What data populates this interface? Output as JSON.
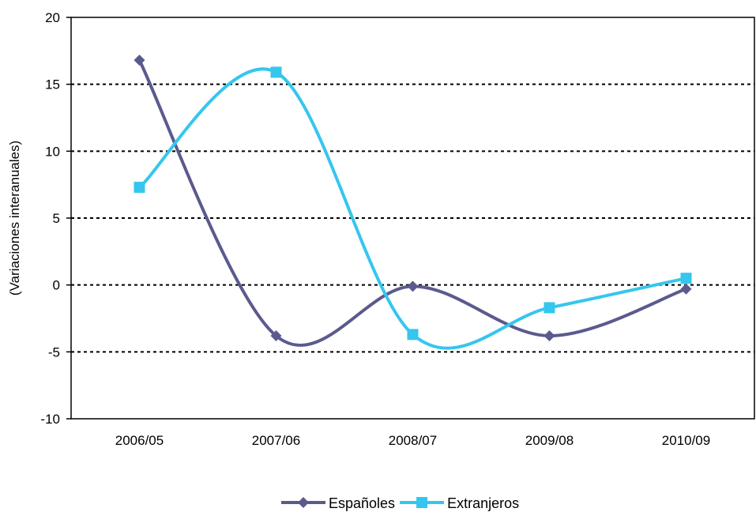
{
  "chart_data": {
    "type": "line",
    "categories": [
      "2006/05",
      "2007/06",
      "2008/07",
      "2009/08",
      "2010/09"
    ],
    "series": [
      {
        "name": "Españoles",
        "values": [
          16.8,
          -3.8,
          -0.1,
          -3.8,
          -0.3
        ],
        "color": "#5B5A8E",
        "marker": "diamond"
      },
      {
        "name": "Extranjeros",
        "values": [
          7.3,
          15.9,
          -3.7,
          -1.7,
          0.5
        ],
        "color": "#35C6EE",
        "marker": "square"
      }
    ],
    "ylabel": "(Variaciones interanuales)",
    "ylim": [
      -10,
      20
    ],
    "yticks": [
      -10,
      -5,
      0,
      5,
      10,
      15,
      20
    ],
    "grid": "dotted horizontal",
    "smooth": true,
    "legend": "bottom-center"
  }
}
